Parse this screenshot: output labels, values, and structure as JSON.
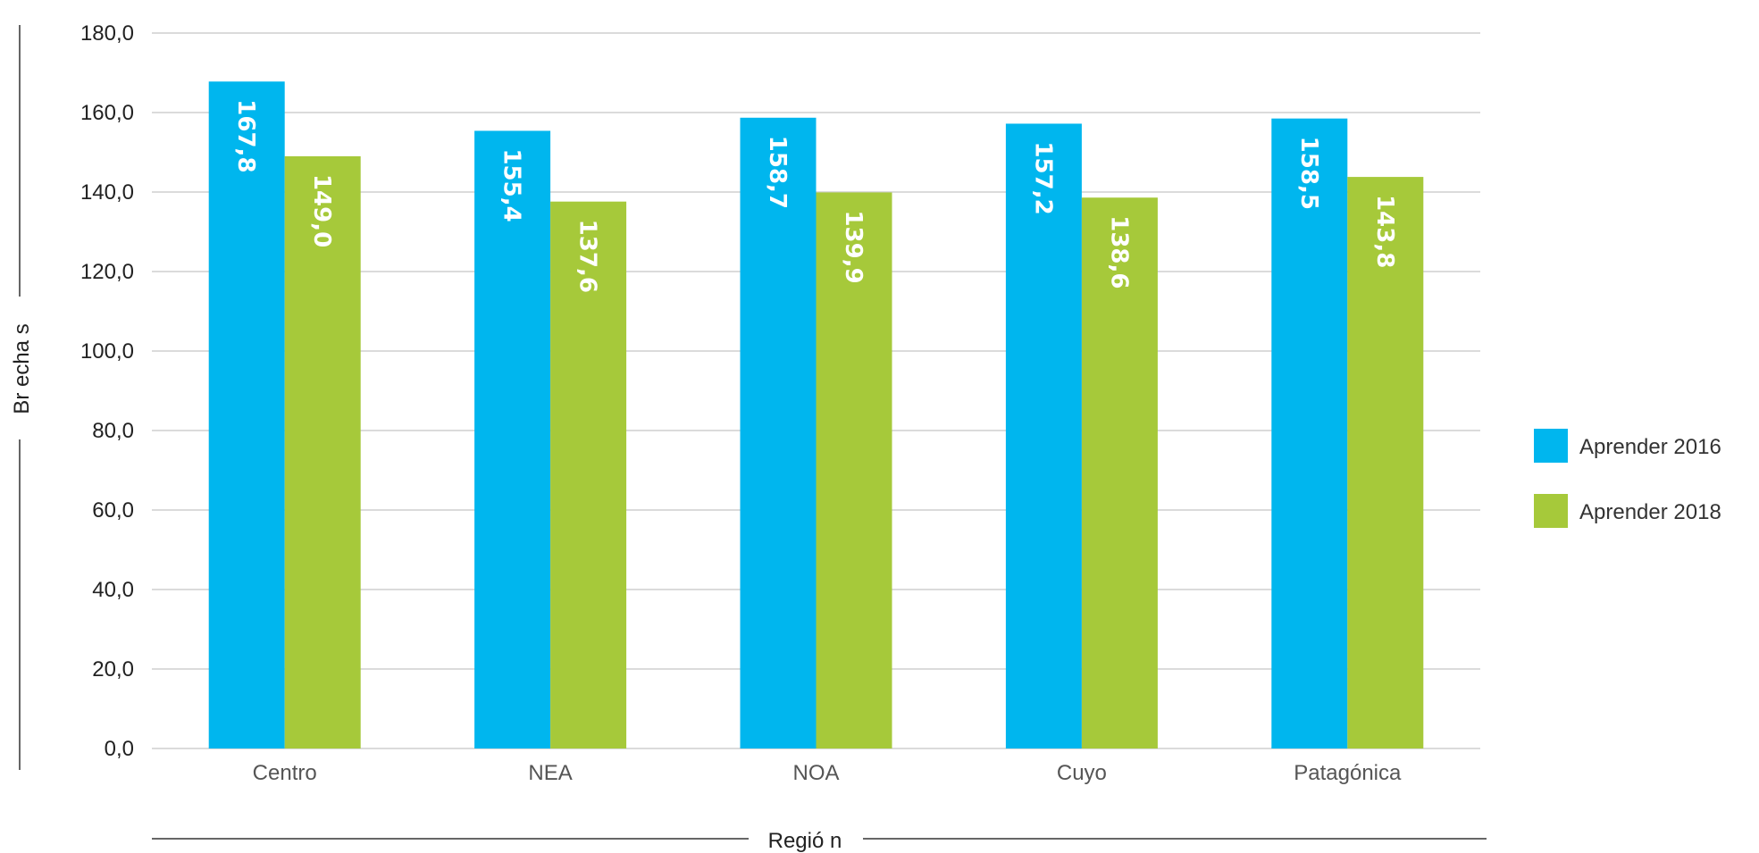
{
  "chart_data": {
    "type": "bar",
    "categories": [
      "Centro",
      "NEA",
      "NOA",
      "Cuyo",
      "Patagónica"
    ],
    "series": [
      {
        "name": "Aprender 2016",
        "color": "#00B6EE",
        "values": [
          167.8,
          155.4,
          158.7,
          157.2,
          158.5
        ],
        "data_labels": [
          "167,8",
          "155,4",
          "158,7",
          "157,2",
          "158,5"
        ]
      },
      {
        "name": "Aprender 2018",
        "color": "#A6C93A",
        "values": [
          149.0,
          137.6,
          139.9,
          138.6,
          143.8
        ],
        "data_labels": [
          "149,0",
          "137,6",
          "139,9",
          "138,6",
          "143,8"
        ]
      }
    ],
    "title": "",
    "xlabel": "Regió n",
    "ylabel": "Br echa s",
    "ylim": [
      0,
      180
    ],
    "yticks": [
      0,
      20,
      40,
      60,
      80,
      100,
      120,
      140,
      160,
      180
    ],
    "ytick_labels": [
      "0,0",
      "20,0",
      "40,0",
      "60,0",
      "80,0",
      "100,0",
      "120,0",
      "140,0",
      "160,0",
      "180,0"
    ],
    "grid": true,
    "legend_position": "right"
  }
}
